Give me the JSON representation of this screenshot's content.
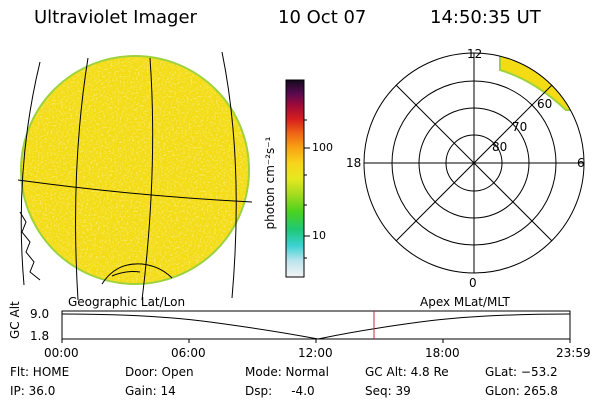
{
  "header": {
    "instrument": "Ultraviolet Imager",
    "date": "10 Oct 07",
    "time": "14:50:35 UT"
  },
  "colorbar": {
    "unit_label": "photon cm⁻²s⁻¹",
    "tick_labels": [
      "100",
      "10"
    ]
  },
  "polar_plot": {
    "mlt_labels": {
      "top": "12",
      "left": "18",
      "right": "6",
      "bottom": "0"
    },
    "mlat_labels": [
      "60",
      "70",
      "80"
    ]
  },
  "panel_labels": {
    "left": "Geographic Lat/Lon",
    "right": "Apex MLat/MLT"
  },
  "altitude_plot": {
    "ylabel": "GC Alt",
    "y_tick_labels": [
      "9.0",
      "1.8"
    ],
    "x_tick_labels": [
      "00:00",
      "06:00",
      "12:00",
      "18:00",
      "23:59"
    ]
  },
  "status": {
    "flt": "Flt: HOME",
    "ip": "IP: 36.0",
    "door": "Door: Open",
    "gain": "Gain: 14",
    "mode": "Mode: Normal",
    "dsp": "Dsp:     -4.0",
    "gc_alt": "GC Alt: 4.8 Re",
    "seq": "Seq: 39",
    "glat": "GLat: −53.2",
    "glon": "GLon: 265.8"
  },
  "colors": {
    "image_fill": "#f4dc14",
    "image_edge": "#9ed23c",
    "cursor_line": "#c8283c"
  }
}
